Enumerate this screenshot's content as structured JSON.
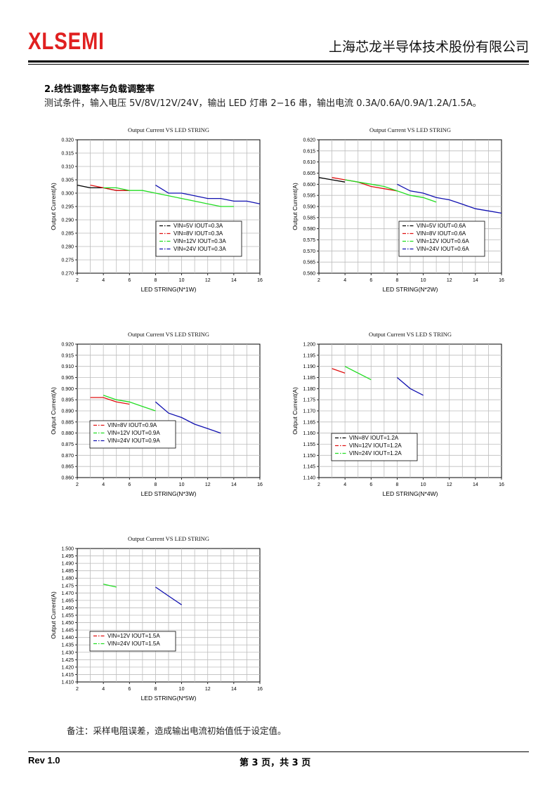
{
  "header": {
    "logo": "XLSEMI",
    "company": "上海芯龙半导体技术股份有限公司"
  },
  "section": {
    "title": "2.线性调整率与负载调整率",
    "conditions": "测试条件，输入电压 5V/8V/12V/24V，输出 LED 灯串 2−16 串，输出电流 0.3A/0.6A/0.9A/1.2A/1.5A。"
  },
  "note": "备注：采样电阻误差，造成输出电流初始值低于设定值。",
  "footer": {
    "rev": "Rev 1.0",
    "page": "第 3 页，共 3 页"
  },
  "chart_data": [
    {
      "type": "line",
      "title": "Output Current VS LED STRING",
      "xlabel": "LED STRING(N*1W)",
      "ylabel": "Output Current(A)",
      "xlim": [
        2,
        16
      ],
      "xticks": [
        2,
        4,
        6,
        8,
        10,
        12,
        14,
        16
      ],
      "ylim": [
        0.27,
        0.32
      ],
      "ystep": 0.005,
      "ydec": 3,
      "series": [
        {
          "name": "VIN=5V IOUT=0.3A",
          "color": "#000000",
          "x": [
            2,
            3,
            4,
            5,
            6
          ],
          "y": [
            0.303,
            0.302,
            0.302,
            0.301,
            0.301
          ]
        },
        {
          "name": "VIN=8V IOUT=0.3A",
          "color": "#e01010",
          "x": [
            3,
            4,
            5,
            6
          ],
          "y": [
            0.303,
            0.302,
            0.301,
            0.301
          ]
        },
        {
          "name": "VIN=12V IOUT=0.3A",
          "color": "#22dd22",
          "x": [
            4,
            5,
            6,
            7,
            8,
            9,
            10,
            11,
            12,
            13,
            14
          ],
          "y": [
            0.302,
            0.302,
            0.301,
            0.301,
            0.3,
            0.299,
            0.298,
            0.297,
            0.296,
            0.295,
            0.295
          ]
        },
        {
          "name": "VIN=24V IOUT=0.3A",
          "color": "#1010b0",
          "x": [
            8,
            9,
            10,
            11,
            12,
            13,
            14,
            15,
            16
          ],
          "y": [
            0.303,
            0.3,
            0.3,
            0.299,
            0.298,
            0.298,
            0.297,
            0.297,
            0.296
          ]
        }
      ]
    },
    {
      "type": "line",
      "title": "Output Current VS LED STRING",
      "xlabel": "LED STRING(N*2W)",
      "ylabel": "Output Current(A)",
      "xlim": [
        2,
        16
      ],
      "xticks": [
        2,
        4,
        6,
        8,
        10,
        12,
        14,
        16
      ],
      "ylim": [
        0.56,
        0.62
      ],
      "ystep": 0.005,
      "ydec": 3,
      "series": [
        {
          "name": "VIN=5V IOUT=0.6A",
          "color": "#000000",
          "x": [
            2,
            3,
            4
          ],
          "y": [
            0.603,
            0.602,
            0.601
          ]
        },
        {
          "name": "VIN=8V IOUT=0.6A",
          "color": "#e01010",
          "x": [
            3,
            4,
            5,
            6,
            7,
            8
          ],
          "y": [
            0.603,
            0.602,
            0.601,
            0.599,
            0.598,
            0.597
          ]
        },
        {
          "name": "VIN=12V IOUT=0.6A",
          "color": "#22dd22",
          "x": [
            4,
            5,
            6,
            7,
            8,
            9,
            10,
            11
          ],
          "y": [
            0.602,
            0.601,
            0.6,
            0.599,
            0.597,
            0.595,
            0.594,
            0.592
          ]
        },
        {
          "name": "VIN=24V IOUT=0.6A",
          "color": "#1010b0",
          "x": [
            8,
            9,
            10,
            11,
            12,
            13,
            14,
            15,
            16
          ],
          "y": [
            0.6,
            0.597,
            0.596,
            0.594,
            0.593,
            0.591,
            0.589,
            0.588,
            0.587
          ]
        }
      ]
    },
    {
      "type": "line",
      "title": "Output Current VS LED STRING",
      "xlabel": "LED STRING(N*3W)",
      "ylabel": "Output Current(A)",
      "xlim": [
        2,
        16
      ],
      "xticks": [
        2,
        4,
        6,
        8,
        10,
        12,
        14,
        16
      ],
      "ylim": [
        0.86,
        0.92
      ],
      "ystep": 0.005,
      "ydec": 3,
      "series": [
        {
          "name": "VIN=8V IOUT=0.9A",
          "color": "#e01010",
          "x": [
            3,
            4,
            5,
            6
          ],
          "y": [
            0.896,
            0.896,
            0.894,
            0.893
          ]
        },
        {
          "name": "VIN=12V IOUT=0.9A",
          "color": "#22dd22",
          "x": [
            4,
            5,
            6,
            7,
            8
          ],
          "y": [
            0.897,
            0.895,
            0.894,
            0.892,
            0.89
          ]
        },
        {
          "name": "VIN=24V IOUT=0.9A",
          "color": "#1010b0",
          "x": [
            8,
            9,
            10,
            11,
            12,
            13
          ],
          "y": [
            0.894,
            0.889,
            0.887,
            0.884,
            0.882,
            0.88
          ]
        }
      ]
    },
    {
      "type": "line",
      "title": "Output Current VS LED S TRING",
      "xlabel": "LED STRING(N*4W)",
      "ylabel": "Output Current(A)",
      "xlim": [
        2,
        16
      ],
      "xticks": [
        2,
        4,
        6,
        8,
        10,
        12,
        14,
        16
      ],
      "ylim": [
        1.14,
        1.2
      ],
      "ystep": 0.005,
      "ydec": 3,
      "series": [
        {
          "name": "VIN=8V IOUT=1.2A",
          "color": "#000000",
          "x": [],
          "y": []
        },
        {
          "name": "VIN=12V IOUT=1.2A",
          "color": "#e01010",
          "x": [
            3,
            4
          ],
          "y": [
            1.189,
            1.187
          ]
        },
        {
          "name": "VIN=24V IOUT=1.2A",
          "color": "#22dd22",
          "x": [
            4,
            5,
            6
          ],
          "y": [
            1.19,
            1.187,
            1.184
          ]
        },
        {
          "name": "",
          "color": "#1010b0",
          "x": [
            8,
            9,
            10
          ],
          "y": [
            1.185,
            1.18,
            1.177
          ]
        }
      ]
    },
    {
      "type": "line",
      "title": "Output Current VS LED STRING",
      "xlabel": "LED STRING(N*5W)",
      "ylabel": "Output Current(A)",
      "xlim": [
        2,
        16
      ],
      "xticks": [
        2,
        4,
        6,
        8,
        10,
        12,
        14,
        16
      ],
      "ylim": [
        1.41,
        1.5
      ],
      "ystep": 0.005,
      "ydec": 3,
      "series": [
        {
          "name": "VIN=12V IOUT=1.5A",
          "color": "#e01010",
          "x": [],
          "y": []
        },
        {
          "name": "VIN=24V IOUT=1.5A",
          "color": "#22dd22",
          "x": [
            4,
            5
          ],
          "y": [
            1.476,
            1.474
          ]
        },
        {
          "name": "",
          "color": "#1010b0",
          "x": [
            8,
            9,
            10
          ],
          "y": [
            1.474,
            1.468,
            1.462
          ]
        }
      ]
    }
  ]
}
